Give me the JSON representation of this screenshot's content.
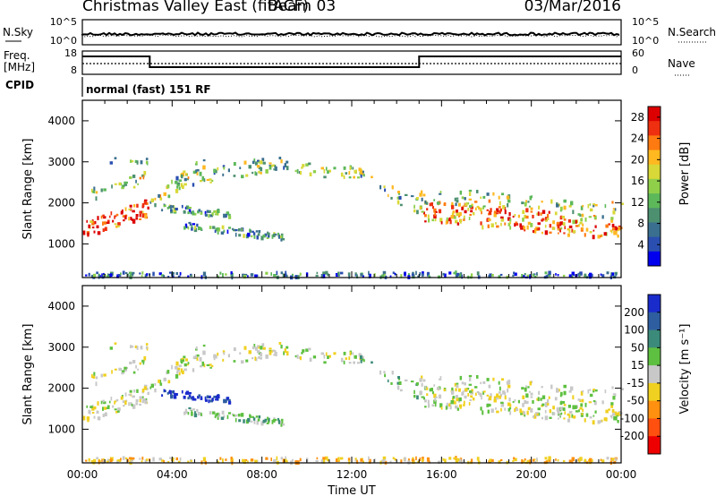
{
  "header": {
    "title": "Christmas Valley East (fitACF)",
    "beam": "Beam 03",
    "date": "03/Mar/2016"
  },
  "panels": {
    "sky": {
      "left_label": "N.Sky",
      "right_label": "N.Search",
      "left_ticks": [
        "10^5",
        "10^0"
      ],
      "right_ticks": [
        "10^5",
        "10^0"
      ]
    },
    "freq": {
      "left_label": "Freq.",
      "left_unit": "[MHz]",
      "right_label": "Nave",
      "left_ticks": [
        "18",
        "8"
      ],
      "right_ticks": [
        "60",
        "0"
      ],
      "steps": [
        {
          "from_hour": 0,
          "to_hour": 3,
          "level": "high"
        },
        {
          "from_hour": 3,
          "to_hour": 15,
          "level": "low"
        },
        {
          "from_hour": 15,
          "to_hour": 24,
          "level": "high"
        }
      ]
    },
    "cpid": {
      "label": "CPID",
      "value": "normal (fast) 151 RF"
    }
  },
  "chart_data": [
    {
      "type": "heatmap",
      "name": "power",
      "ylabel": "Slant Range [km]",
      "ylim": [
        180,
        4500
      ],
      "yticks": [
        "1000",
        "2000",
        "3000",
        "4000"
      ],
      "colorbar_label": "Power [dB]",
      "colorbar_ticks": [
        "4",
        "8",
        "12",
        "16",
        "20",
        "24",
        "28"
      ],
      "colorbar_colors": [
        "#0000ee",
        "#2a4fb0",
        "#3a6f8f",
        "#4c9070",
        "#5db85a",
        "#8fcf4a",
        "#d8d838",
        "#ffb820",
        "#ff7a10",
        "#ee3010",
        "#dd0000"
      ]
    },
    {
      "type": "heatmap",
      "name": "velocity",
      "ylabel": "Slant Range [km]",
      "xlabel": "Time UT",
      "ylim": [
        180,
        4500
      ],
      "yticks": [
        "1000",
        "2000",
        "3000",
        "4000"
      ],
      "xticks": [
        "00:00",
        "04:00",
        "08:00",
        "12:00",
        "16:00",
        "20:00",
        "00:00"
      ],
      "colorbar_label": "Velocity [m s⁻¹]",
      "colorbar_ticks": [
        "200",
        "100",
        "50",
        "15",
        "-15",
        "-50",
        "-100",
        "-200"
      ],
      "colorbar_colors": [
        "#1a2bcc",
        "#2e5ea0",
        "#3c8a7a",
        "#5ec040",
        "#c8c8c8",
        "#f0d020",
        "#ff9010",
        "#ff5010",
        "#ee0000"
      ]
    }
  ]
}
